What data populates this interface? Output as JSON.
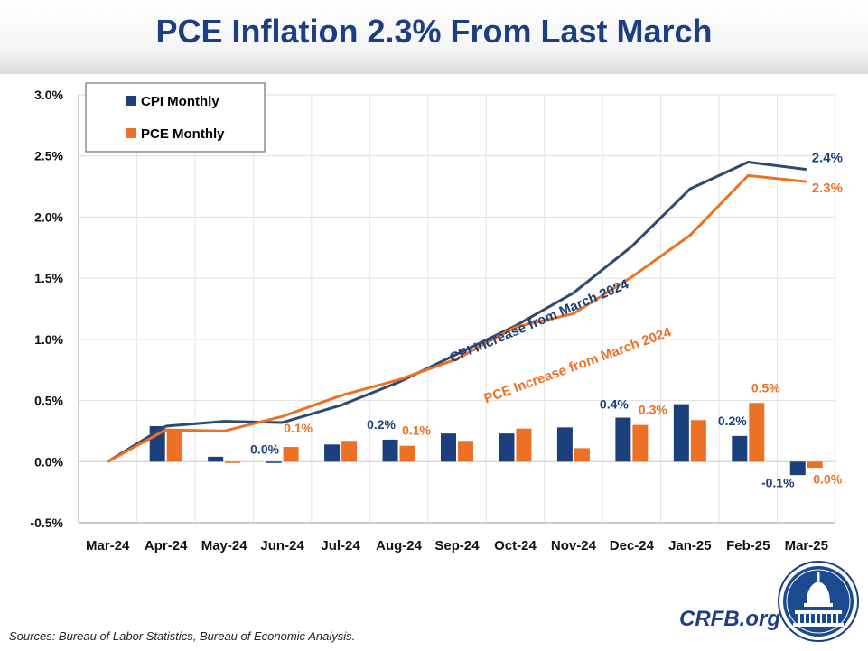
{
  "header": {
    "title": "PCE Inflation 2.3% From Last March"
  },
  "footer": {
    "sources": "Sources: Bureau of Labor Statistics, Bureau of Economic Analysis.",
    "brand": "CRFB.org"
  },
  "colors": {
    "cpi": "#1b3f7a",
    "pce": "#ed7125"
  },
  "logo_icon": "capitol-dome-seal-icon",
  "chart_data": {
    "type": "bar",
    "categories": [
      "Mar-24",
      "Apr-24",
      "May-24",
      "Jun-24",
      "Jul-24",
      "Aug-24",
      "Sep-24",
      "Oct-24",
      "Nov-24",
      "Dec-24",
      "Jan-25",
      "Feb-25",
      "Mar-25"
    ],
    "ylim": [
      -0.5,
      3.0
    ],
    "yticks": [
      "-0.5%",
      "0.0%",
      "0.5%",
      "1.0%",
      "1.5%",
      "2.0%",
      "2.5%",
      "3.0%"
    ],
    "grid": true,
    "legend_position": "top-left",
    "series": [
      {
        "name": "CPI Monthly",
        "kind": "bar",
        "values": [
          null,
          0.29,
          0.04,
          -0.01,
          0.14,
          0.18,
          0.23,
          0.23,
          0.28,
          0.36,
          0.47,
          0.21,
          -0.11
        ]
      },
      {
        "name": "PCE Monthly",
        "kind": "bar",
        "values": [
          null,
          0.25,
          -0.01,
          0.12,
          0.17,
          0.13,
          0.17,
          0.27,
          0.11,
          0.3,
          0.34,
          0.48,
          -0.05
        ]
      },
      {
        "kind": "line",
        "values": [
          0.0,
          0.29,
          0.33,
          0.32,
          0.46,
          0.65,
          0.88,
          1.11,
          1.38,
          1.76,
          2.23,
          2.45,
          2.39
        ]
      },
      {
        "kind": "line",
        "values": [
          0.0,
          0.26,
          0.25,
          0.37,
          0.54,
          0.67,
          0.84,
          1.1,
          1.21,
          1.51,
          1.85,
          2.34,
          2.29
        ]
      }
    ],
    "bar_labels": [
      {
        "series": 0,
        "index": 3,
        "text": "0.0%"
      },
      {
        "series": 1,
        "index": 3,
        "text": "0.1%"
      },
      {
        "series": 0,
        "index": 5,
        "text": "0.2%"
      },
      {
        "series": 1,
        "index": 5,
        "text": "0.1%"
      },
      {
        "series": 0,
        "index": 9,
        "text": "0.4%"
      },
      {
        "series": 1,
        "index": 9,
        "text": "0.3%"
      },
      {
        "series": 0,
        "index": 11,
        "text": "0.2%"
      },
      {
        "series": 1,
        "index": 11,
        "text": "0.5%"
      },
      {
        "series": 0,
        "index": 12,
        "text": "-0.1%"
      },
      {
        "series": 1,
        "index": 12,
        "text": "0.0%"
      }
    ],
    "line_end_labels": [
      {
        "series": 2,
        "text": "2.4%"
      },
      {
        "series": 3,
        "text": "2.3%"
      }
    ],
    "annotations": [
      {
        "series": 2,
        "text": "CPI Increase from March 2024"
      },
      {
        "series": 3,
        "text": "PCE Increase from March 2024"
      }
    ]
  }
}
